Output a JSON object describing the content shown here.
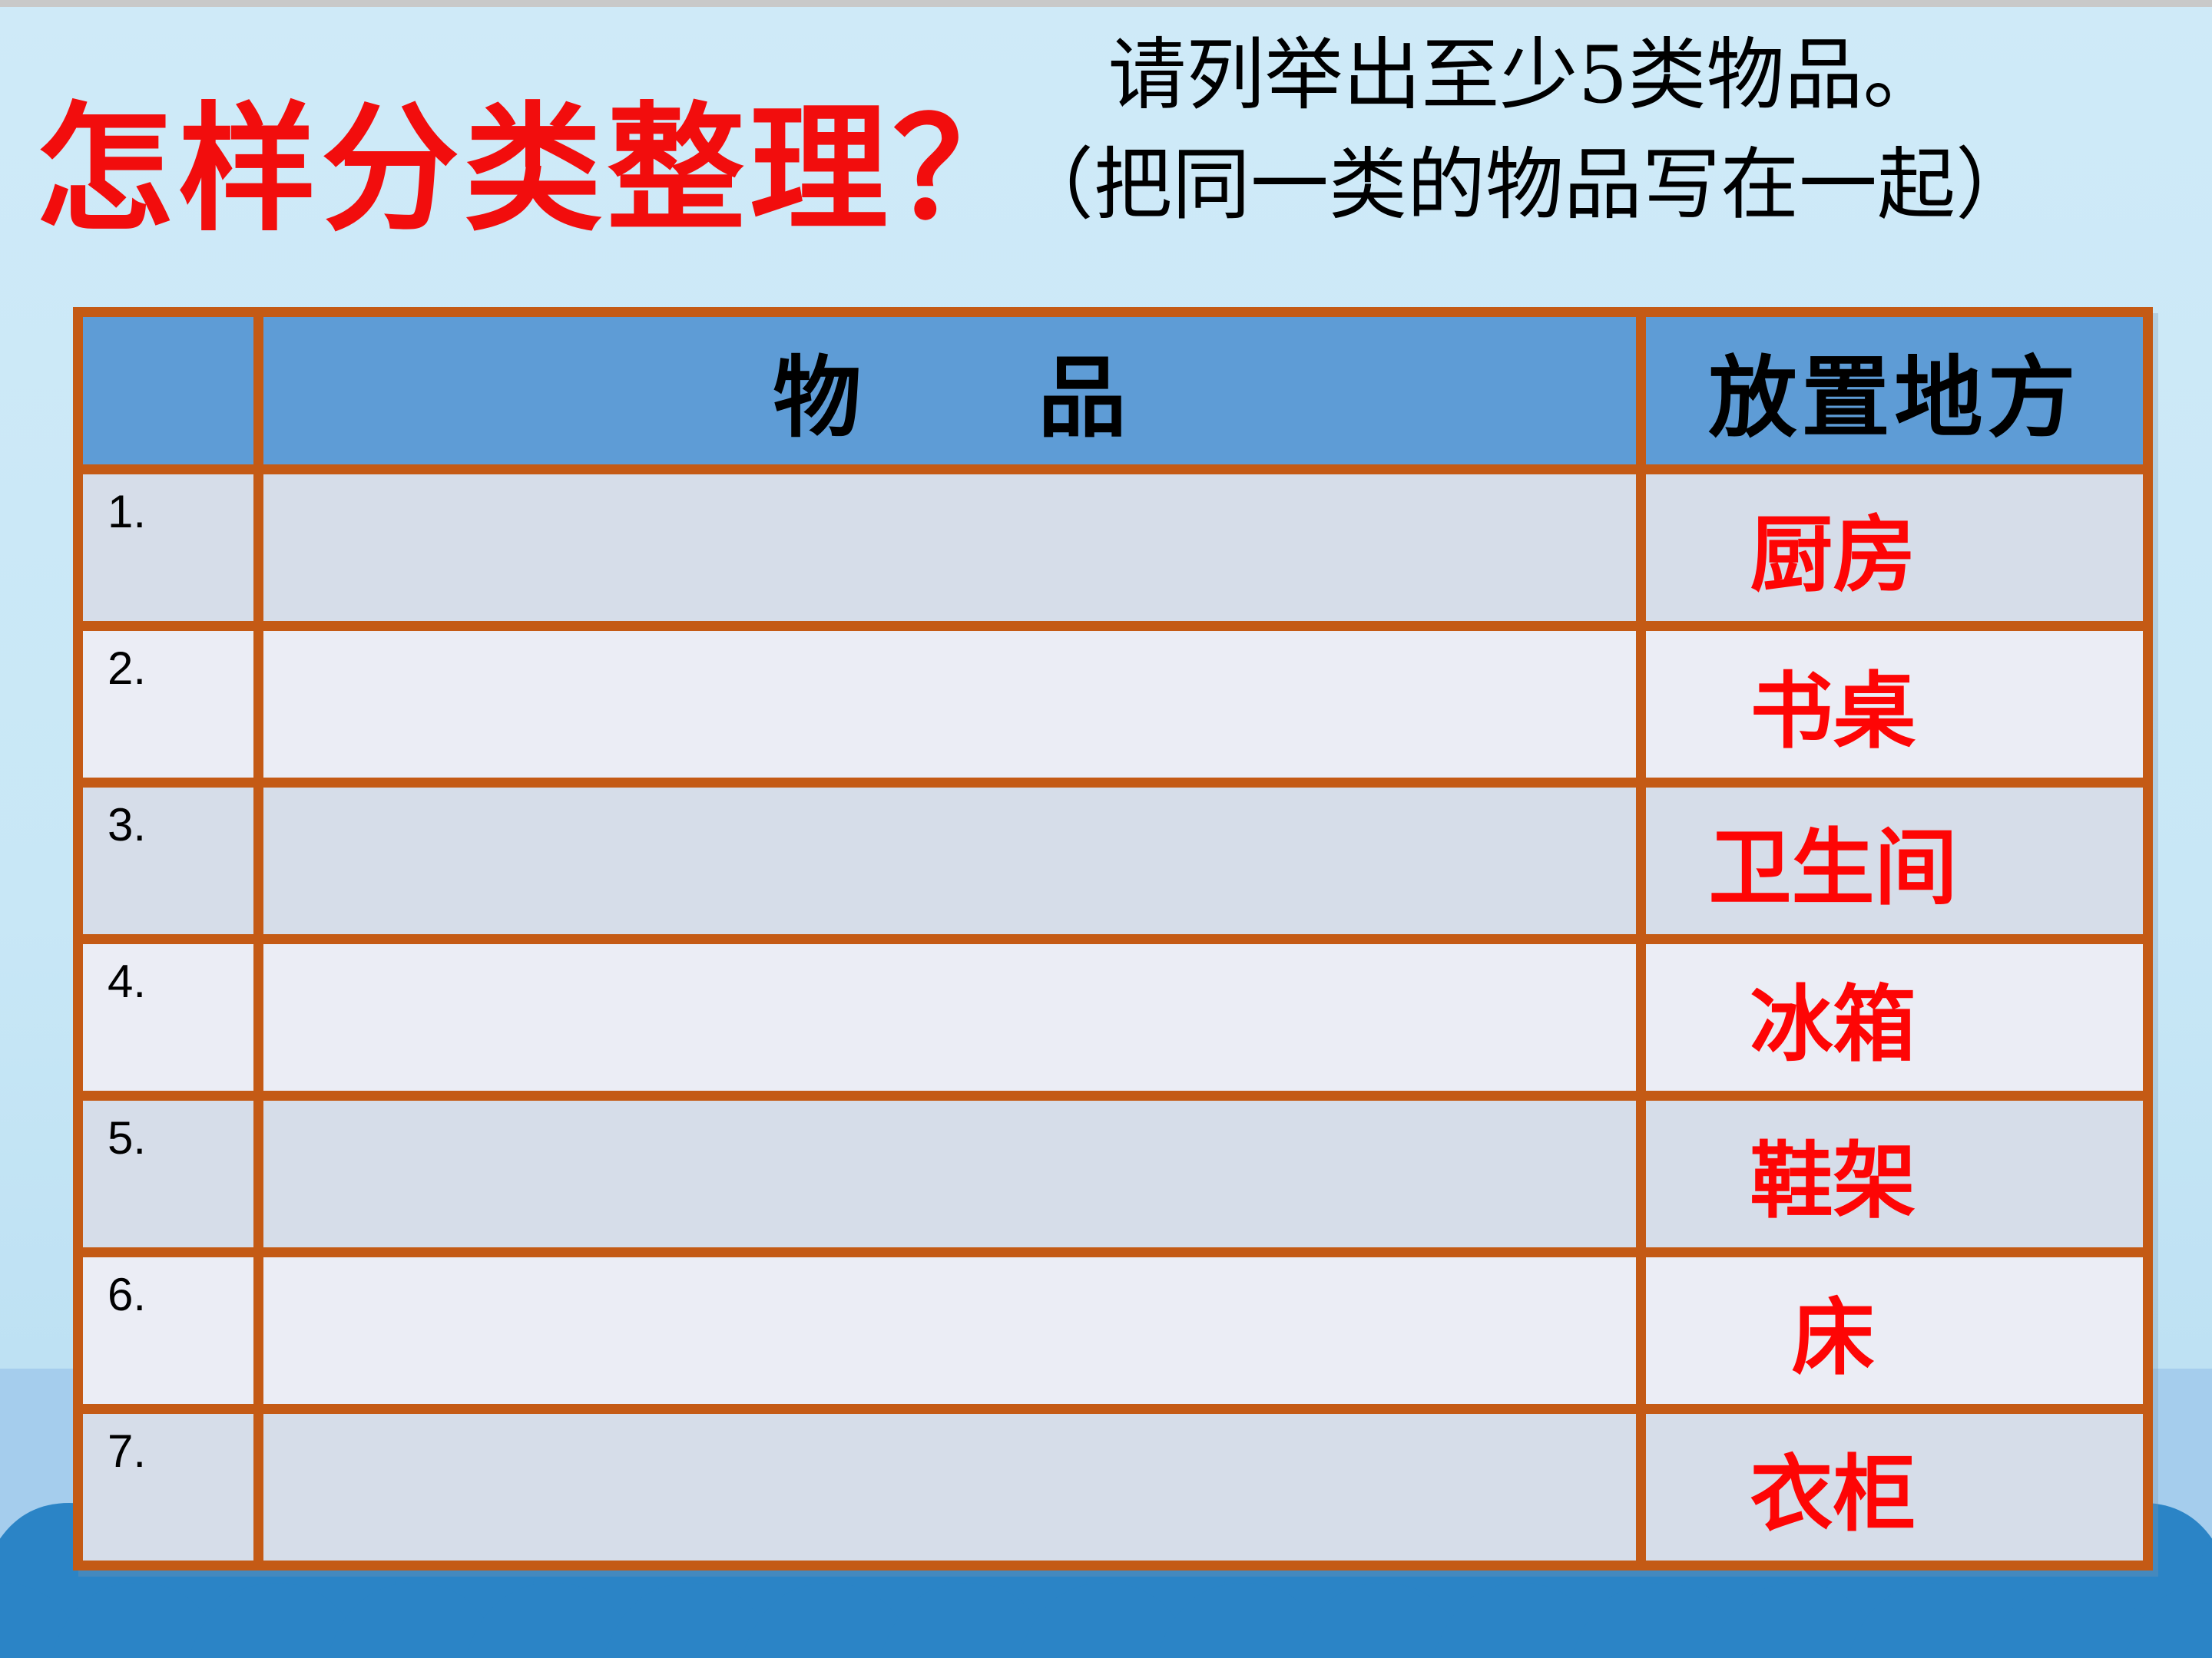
{
  "header": {
    "title": "怎样分类整理？",
    "instruction_line1": "请列举出至少5类物品。",
    "instruction_line2": "（把同一类的物品写在一起）"
  },
  "table": {
    "columns": {
      "index_header": "",
      "item_header": "物　　品",
      "location_header": "放置地方"
    },
    "rows": [
      {
        "number": "1.",
        "item": "",
        "location": "厨房"
      },
      {
        "number": "2.",
        "item": "",
        "location": "书桌"
      },
      {
        "number": "3.",
        "item": "",
        "location": "卫生间"
      },
      {
        "number": "4.",
        "item": "",
        "location": "冰箱"
      },
      {
        "number": "5.",
        "item": "",
        "location": "鞋架"
      },
      {
        "number": "6.",
        "item": "",
        "location": "床"
      },
      {
        "number": "7.",
        "item": "",
        "location": "衣柜"
      }
    ]
  },
  "colors": {
    "background_top": "#CFEAF8",
    "background_bottom": "#BEE1F3",
    "band": "#A5CDED",
    "wave": "#2B84C6",
    "table_border": "#C45A15",
    "header_fill": "#5E9CD6",
    "row_odd_fill": "#D6DDE9",
    "row_even_fill": "#EBEDF5",
    "title_red": "#F20D0D",
    "location_red": "#FE0505",
    "text_black": "#000000",
    "top_strip": "#C9C9C9"
  }
}
